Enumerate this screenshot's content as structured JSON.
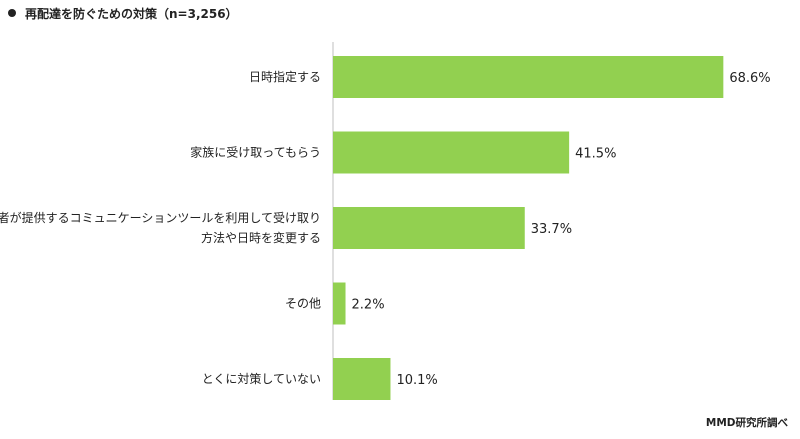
{
  "title": "再配達を防ぐための対策（n=3,256）",
  "source": "MMD研究所調べ",
  "chart_data": {
    "type": "bar",
    "orientation": "horizontal",
    "categories": [
      [
        "日時指定する"
      ],
      [
        "家族に受け取ってもらう"
      ],
      [
        "事業者が提供するコミュニケーションツールを利用して受け取り",
        "方法や日時を変更する"
      ],
      [
        "その他"
      ],
      [
        "とくに対策していない"
      ]
    ],
    "values": [
      68.6,
      41.5,
      33.7,
      2.2,
      10.1
    ],
    "value_labels": [
      "68.6%",
      "41.5%",
      "33.7%",
      "2.2%",
      "10.1%"
    ],
    "xlim": [
      0,
      100
    ],
    "bar_color": "#92d050",
    "grid": false,
    "legend": "none"
  }
}
